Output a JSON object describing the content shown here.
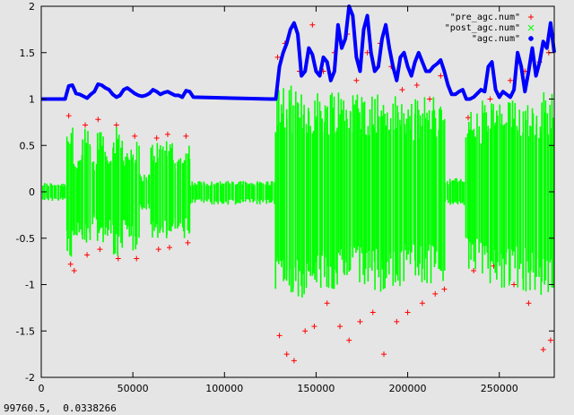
{
  "chart_data": {
    "type": "scatter",
    "title": "",
    "xlabel": "",
    "ylabel": "",
    "xlim": [
      0,
      280000
    ],
    "ylim": [
      -2,
      2
    ],
    "x_ticks": [
      "0",
      "50000",
      "100000",
      "150000",
      "200000",
      "250000"
    ],
    "y_ticks": [
      "-2",
      "-1.5",
      "-1",
      "-0.5",
      "0",
      "0.5",
      "1",
      "1.5",
      "2"
    ],
    "legend_placement": "top-right",
    "series": [
      {
        "name": "\"pre_agc.num\"",
        "color": "#ff0000",
        "marker": "+",
        "points": [
          [
            15000,
            0.82
          ],
          [
            16000,
            -0.78
          ],
          [
            18000,
            -0.85
          ],
          [
            24000,
            0.72
          ],
          [
            25000,
            -0.68
          ],
          [
            31000,
            0.78
          ],
          [
            32000,
            -0.62
          ],
          [
            41000,
            0.72
          ],
          [
            42000,
            -0.72
          ],
          [
            51000,
            0.6
          ],
          [
            52000,
            -0.72
          ],
          [
            63000,
            0.58
          ],
          [
            64000,
            -0.62
          ],
          [
            69000,
            0.62
          ],
          [
            70000,
            -0.6
          ],
          [
            79000,
            0.6
          ],
          [
            80000,
            -0.55
          ],
          [
            129000,
            1.45
          ],
          [
            130000,
            -1.55
          ],
          [
            133000,
            1.6
          ],
          [
            134000,
            -1.75
          ],
          [
            138000,
            -1.82
          ],
          [
            141000,
            1.3
          ],
          [
            144000,
            -1.5
          ],
          [
            148000,
            1.8
          ],
          [
            149000,
            -1.45
          ],
          [
            154000,
            1.3
          ],
          [
            156000,
            -1.2
          ],
          [
            160000,
            1.5
          ],
          [
            163000,
            -1.45
          ],
          [
            167000,
            1.7
          ],
          [
            168000,
            -1.6
          ],
          [
            172000,
            1.2
          ],
          [
            174000,
            -1.4
          ],
          [
            178000,
            1.5
          ],
          [
            181000,
            -1.3
          ],
          [
            185000,
            1.6
          ],
          [
            187000,
            -1.75
          ],
          [
            191000,
            1.35
          ],
          [
            194000,
            -1.4
          ],
          [
            197000,
            1.1
          ],
          [
            200000,
            -1.3
          ],
          [
            205000,
            1.15
          ],
          [
            208000,
            -1.2
          ],
          [
            212000,
            1.0
          ],
          [
            215000,
            -1.1
          ],
          [
            218000,
            1.25
          ],
          [
            220000,
            -1.05
          ],
          [
            233000,
            0.8
          ],
          [
            236000,
            -0.85
          ],
          [
            245000,
            1.0
          ],
          [
            247000,
            -0.8
          ],
          [
            256000,
            1.2
          ],
          [
            258000,
            -1.0
          ],
          [
            264000,
            1.3
          ],
          [
            266000,
            -1.2
          ],
          [
            272000,
            1.4
          ],
          [
            274000,
            -1.7
          ],
          [
            277000,
            1.5
          ],
          [
            278000,
            -1.6
          ]
        ]
      },
      {
        "name": "\"post_agc.num\"",
        "color": "#00ff00",
        "marker": "x"
      },
      {
        "name": "\"agc.num\"",
        "color": "#0000ff",
        "marker": "*",
        "x": [
          0,
          13000,
          15000,
          17000,
          19000,
          21000,
          23000,
          25000,
          27000,
          29000,
          31000,
          33000,
          35000,
          37000,
          39000,
          41000,
          43000,
          45000,
          47000,
          49000,
          51000,
          53000,
          55000,
          57000,
          59000,
          61000,
          63000,
          65000,
          67000,
          69000,
          71000,
          73000,
          75000,
          77000,
          79000,
          81000,
          83000,
          125000,
          128000,
          130000,
          132000,
          134000,
          136000,
          138000,
          140000,
          142000,
          144000,
          146000,
          148000,
          150000,
          152000,
          154000,
          156000,
          158000,
          160000,
          162000,
          164000,
          166000,
          168000,
          170000,
          172000,
          174000,
          176000,
          178000,
          180000,
          182000,
          184000,
          186000,
          188000,
          190000,
          192000,
          194000,
          196000,
          198000,
          200000,
          202000,
          204000,
          206000,
          208000,
          210000,
          212000,
          214000,
          216000,
          218000,
          220000,
          222000,
          224000,
          226000,
          228000,
          230000,
          232000,
          234000,
          236000,
          238000,
          240000,
          242000,
          244000,
          246000,
          248000,
          250000,
          252000,
          254000,
          256000,
          258000,
          260000,
          262000,
          264000,
          266000,
          268000,
          270000,
          272000,
          274000,
          276000,
          278000,
          280000
        ],
        "y": [
          1.0,
          1.0,
          1.14,
          1.15,
          1.06,
          1.05,
          1.03,
          1.01,
          1.05,
          1.08,
          1.16,
          1.15,
          1.12,
          1.1,
          1.05,
          1.02,
          1.04,
          1.1,
          1.12,
          1.09,
          1.06,
          1.04,
          1.03,
          1.04,
          1.06,
          1.1,
          1.08,
          1.05,
          1.07,
          1.08,
          1.06,
          1.04,
          1.04,
          1.02,
          1.09,
          1.08,
          1.02,
          1.0,
          1.0,
          1.35,
          1.5,
          1.6,
          1.75,
          1.82,
          1.7,
          1.25,
          1.3,
          1.55,
          1.48,
          1.3,
          1.25,
          1.45,
          1.4,
          1.2,
          1.3,
          1.8,
          1.55,
          1.65,
          2.0,
          1.9,
          1.45,
          1.3,
          1.75,
          1.9,
          1.5,
          1.3,
          1.35,
          1.65,
          1.8,
          1.55,
          1.35,
          1.2,
          1.45,
          1.5,
          1.35,
          1.25,
          1.4,
          1.5,
          1.4,
          1.3,
          1.3,
          1.35,
          1.38,
          1.42,
          1.3,
          1.15,
          1.05,
          1.05,
          1.08,
          1.1,
          1.0,
          1.0,
          1.02,
          1.06,
          1.1,
          1.08,
          1.35,
          1.4,
          1.1,
          1.02,
          1.08,
          1.05,
          1.02,
          1.1,
          1.5,
          1.35,
          1.08,
          1.3,
          1.55,
          1.25,
          1.4,
          1.62,
          1.55,
          1.82,
          1.5
        ]
      }
    ],
    "post_agc_segments": [
      {
        "x0": 0,
        "x1": 13000,
        "hi": 0.1,
        "lo": -0.1
      },
      {
        "x0": 13000,
        "x1": 17000,
        "hi": 0.8,
        "lo": -0.75
      },
      {
        "x0": 17000,
        "x1": 22000,
        "hi": 0.4,
        "lo": -0.6
      },
      {
        "x0": 22000,
        "x1": 27000,
        "hi": 0.7,
        "lo": -0.6
      },
      {
        "x0": 27000,
        "x1": 30000,
        "hi": 0.35,
        "lo": -0.35
      },
      {
        "x0": 30000,
        "x1": 34000,
        "hi": 0.75,
        "lo": -0.55
      },
      {
        "x0": 34000,
        "x1": 39000,
        "hi": 0.55,
        "lo": -0.5
      },
      {
        "x0": 39000,
        "x1": 44000,
        "hi": 0.7,
        "lo": -0.7
      },
      {
        "x0": 44000,
        "x1": 48000,
        "hi": 0.5,
        "lo": -0.5
      },
      {
        "x0": 48000,
        "x1": 53000,
        "hi": 0.55,
        "lo": -0.65
      },
      {
        "x0": 53000,
        "x1": 59000,
        "hi": 0.2,
        "lo": -0.2
      },
      {
        "x0": 59000,
        "x1": 66000,
        "hi": 0.55,
        "lo": -0.55
      },
      {
        "x0": 66000,
        "x1": 72000,
        "hi": 0.6,
        "lo": -0.55
      },
      {
        "x0": 72000,
        "x1": 77000,
        "hi": 0.4,
        "lo": -0.4
      },
      {
        "x0": 77000,
        "x1": 81000,
        "hi": 0.55,
        "lo": -0.5
      },
      {
        "x0": 81000,
        "x1": 127000,
        "hi": 0.12,
        "lo": -0.14
      },
      {
        "x0": 127000,
        "x1": 137000,
        "hi": 1.15,
        "lo": -1.1
      },
      {
        "x0": 137000,
        "x1": 147000,
        "hi": 1.1,
        "lo": -1.15
      },
      {
        "x0": 147000,
        "x1": 157000,
        "hi": 1.1,
        "lo": -1.05
      },
      {
        "x0": 157000,
        "x1": 167000,
        "hi": 1.15,
        "lo": -1.1
      },
      {
        "x0": 167000,
        "x1": 177000,
        "hi": 1.1,
        "lo": -1.05
      },
      {
        "x0": 177000,
        "x1": 187000,
        "hi": 1.1,
        "lo": -1.1
      },
      {
        "x0": 187000,
        "x1": 197000,
        "hi": 1.05,
        "lo": -1.05
      },
      {
        "x0": 197000,
        "x1": 207000,
        "hi": 1.0,
        "lo": -1.0
      },
      {
        "x0": 207000,
        "x1": 220000,
        "hi": 1.05,
        "lo": -1.0
      },
      {
        "x0": 220000,
        "x1": 231000,
        "hi": 0.15,
        "lo": -0.15
      },
      {
        "x0": 231000,
        "x1": 240000,
        "hi": 0.9,
        "lo": -0.9
      },
      {
        "x0": 240000,
        "x1": 250000,
        "hi": 1.0,
        "lo": -1.0
      },
      {
        "x0": 250000,
        "x1": 262000,
        "hi": 1.0,
        "lo": -1.05
      },
      {
        "x0": 262000,
        "x1": 272000,
        "hi": 1.05,
        "lo": -1.1
      },
      {
        "x0": 272000,
        "x1": 280000,
        "hi": 1.1,
        "lo": -1.15
      }
    ]
  },
  "status_bar": {
    "coordinates": "99760.5,  0.0338266"
  }
}
